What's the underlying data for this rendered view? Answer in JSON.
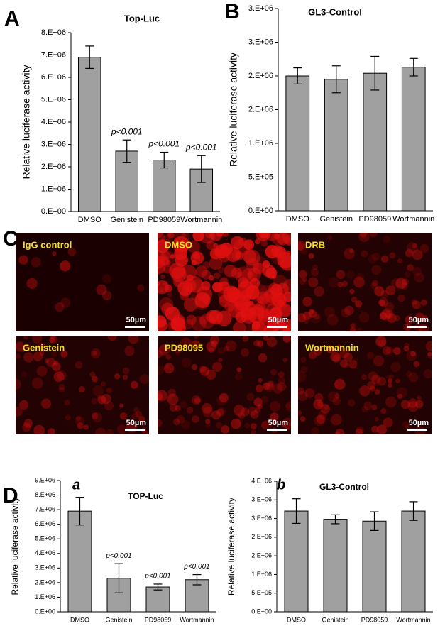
{
  "chart_data": [
    {
      "type": "bar",
      "label": "A",
      "title": "Top-Luc",
      "y_label": "Relative luciferase activity",
      "categories": [
        "DMSO",
        "Genistein",
        "PD98059",
        "Wortmannin"
      ],
      "series": [
        {
          "color": "#a0a0a0",
          "values": [
            6900000,
            2700000,
            2300000,
            1900000
          ],
          "errors": [
            500000,
            500000,
            350000,
            600000
          ]
        }
      ],
      "annotations": [
        null,
        "p<0.001",
        "p<0.001",
        "p<0.001"
      ],
      "ylim": [
        0,
        8000000
      ],
      "yticks": [
        {
          "value": 0,
          "label": "0.E+00"
        },
        {
          "value": 1000000,
          "label": "1.E+06"
        },
        {
          "value": 2000000,
          "label": "2.E+06"
        },
        {
          "value": 3000000,
          "label": "3.E+06"
        },
        {
          "value": 4000000,
          "label": "4.E+06"
        },
        {
          "value": 5000000,
          "label": "5.E+06"
        },
        {
          "value": 6000000,
          "label": "6.E+06"
        },
        {
          "value": 7000000,
          "label": "7.E+06"
        },
        {
          "value": 8000000,
          "label": "8.E+06"
        }
      ]
    },
    {
      "type": "bar",
      "label": "B",
      "title": "GL3-Control",
      "y_label": "Relative luciferase activity",
      "categories": [
        "DMSO",
        "Genistein",
        "PD98059",
        "Wortmannin"
      ],
      "series": [
        {
          "color": "#a0a0a0",
          "values": [
            2000000,
            1950000,
            2040000,
            2130000
          ],
          "errors": [
            120000,
            200000,
            250000,
            130000
          ]
        }
      ],
      "ylim": [
        0,
        3000000
      ],
      "yticks": [
        {
          "value": 0,
          "label": "0.E+00"
        },
        {
          "value": 500000,
          "label": "5.E+05"
        },
        {
          "value": 1000000,
          "label": "1.E+06"
        },
        {
          "value": 1500000,
          "label": "2.E+06"
        },
        {
          "value": 2000000,
          "label": "2.E+06"
        },
        {
          "value": 2500000,
          "label": "3.E+06"
        },
        {
          "value": 3000000,
          "label": "3.E+06"
        }
      ]
    },
    {
      "type": "bar",
      "label": "D",
      "sublabel": "a",
      "title": "TOP-Luc",
      "y_label": "Relative luciferase activity",
      "categories": [
        "DMSO",
        "Genistein",
        "PD98059",
        "Wortmannin"
      ],
      "series": [
        {
          "color": "#a0a0a0",
          "values": [
            6900000,
            2300000,
            1700000,
            2200000
          ],
          "errors": [
            950000,
            1000000,
            200000,
            350000
          ]
        }
      ],
      "annotations": [
        null,
        "p<0.001",
        "p<0.001",
        "p<0.001"
      ],
      "ylim": [
        0,
        9000000
      ],
      "yticks": [
        {
          "value": 0,
          "label": "0.E+00"
        },
        {
          "value": 1000000,
          "label": "1.E+06"
        },
        {
          "value": 2000000,
          "label": "2.E+06"
        },
        {
          "value": 3000000,
          "label": "3.E+06"
        },
        {
          "value": 4000000,
          "label": "4.E+06"
        },
        {
          "value": 5000000,
          "label": "5.E+06"
        },
        {
          "value": 6000000,
          "label": "6.E+06"
        },
        {
          "value": 7000000,
          "label": "7.E+06"
        },
        {
          "value": 8000000,
          "label": "8.E+06"
        },
        {
          "value": 9000000,
          "label": "9.E+06"
        }
      ]
    },
    {
      "type": "bar",
      "sublabel": "b",
      "title": "GL3-Control",
      "y_label": "Relative luciferase activity",
      "categories": [
        "DMSO",
        "Genistein",
        "PD98059",
        "Wortmannin"
      ],
      "series": [
        {
          "color": "#a0a0a0",
          "values": [
            2700000,
            2480000,
            2430000,
            2700000
          ],
          "errors": [
            330000,
            120000,
            250000,
            250000
          ]
        }
      ],
      "ylim": [
        0,
        3500000
      ],
      "yticks": [
        {
          "value": 0,
          "label": "0.E+00"
        },
        {
          "value": 500000,
          "label": "5.E+05"
        },
        {
          "value": 1000000,
          "label": "1.E+06"
        },
        {
          "value": 1500000,
          "label": "2.E+06"
        },
        {
          "value": 2000000,
          "label": "2.E+06"
        },
        {
          "value": 2500000,
          "label": "3.E+06"
        },
        {
          "value": 3000000,
          "label": "3.E+06"
        },
        {
          "value": 3500000,
          "label": "4.E+06"
        }
      ]
    }
  ],
  "micrographs": {
    "label": "C",
    "panels": [
      {
        "label": "IgG control",
        "scale_bar": "50µm"
      },
      {
        "label": "DMSO",
        "scale_bar": "50µm"
      },
      {
        "label": "DRB",
        "scale_bar": "50µm"
      },
      {
        "label": "Genistein",
        "scale_bar": "50µm"
      },
      {
        "label": "PD98095",
        "scale_bar": "50µm"
      },
      {
        "label": "Wortmannin",
        "scale_bar": "50µm"
      }
    ]
  }
}
